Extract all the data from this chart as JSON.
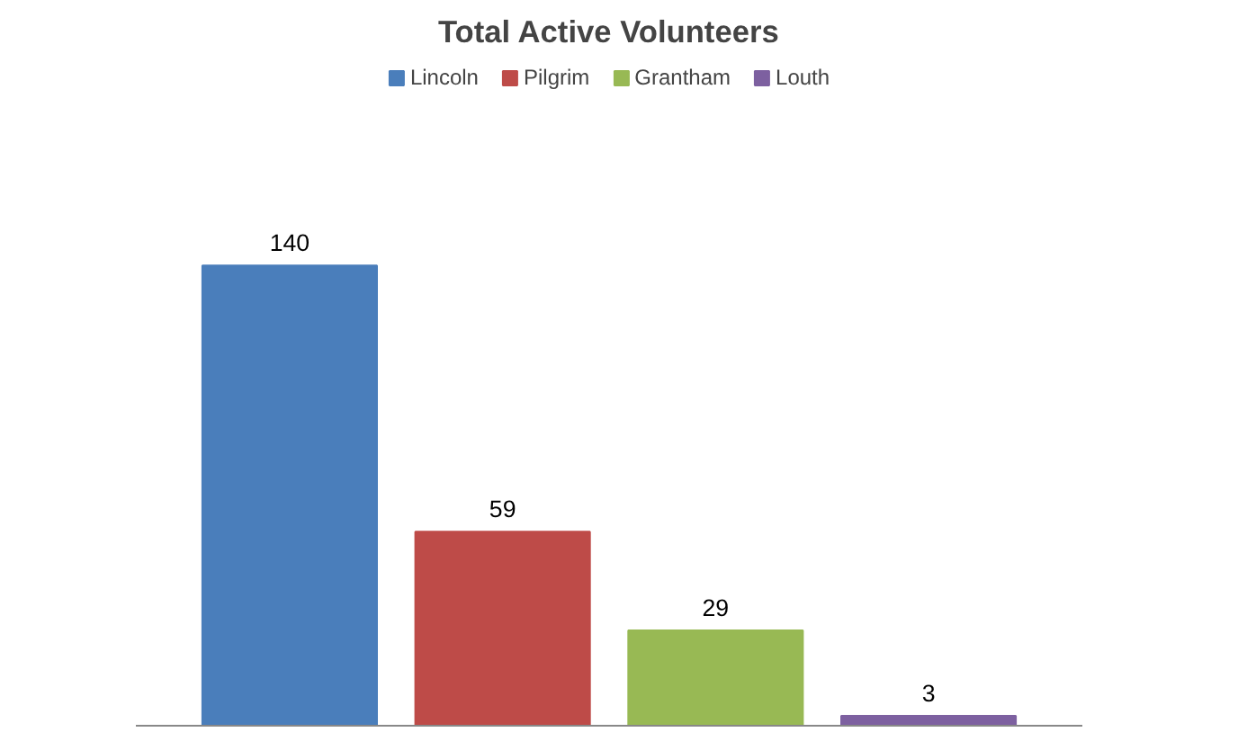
{
  "chart_data": {
    "type": "bar",
    "title": "Total Active Volunteers",
    "categories": [
      null
    ],
    "series": [
      {
        "name": "Lincoln",
        "color": "#4a7ebb",
        "values": [
          140
        ]
      },
      {
        "name": "Pilgrim",
        "color": "#be4b48",
        "values": [
          59
        ]
      },
      {
        "name": "Grantham",
        "color": "#98b954",
        "values": [
          29
        ]
      },
      {
        "name": "Louth",
        "color": "#7d60a0",
        "values": [
          3
        ]
      }
    ],
    "data_labels": true,
    "legend": "top",
    "grid": false
  }
}
